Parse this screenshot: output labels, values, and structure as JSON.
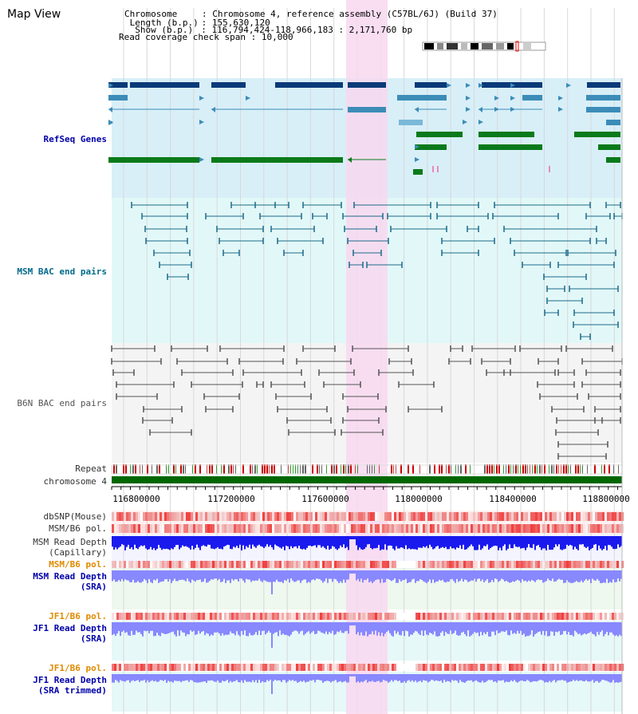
{
  "title": "Map View",
  "info": {
    "chromosome_key": "Chromosome",
    "chromosome_val": "Chromosome 4, reference assembly (C57BL/6J) (Build 37)",
    "length_key": "Length (b.p.)",
    "length_val": "155,630,120",
    "show_key": "Show (b.p.)",
    "show_val": "116,794,424-118,966,183 : 2,171,760 bp",
    "span_key": "Read coverage check span",
    "span_val": "10,000"
  },
  "tracks": {
    "refseq": "RefSeq Genes",
    "msm_bac": "MSM BAC end pairs",
    "b6n_bac": "B6N BAC end pairs",
    "repeat": "Repeat",
    "chromosome": "chromosome 4",
    "dbsnp": "dbSNP(Mouse)",
    "msm_b6_pol": "MSM/B6 pol.",
    "msm_depth_cap_1": "MSM Read Depth",
    "msm_depth_cap_2": "(Capillary)",
    "msm_b6_pol_2": "MSM/B6 pol.",
    "msm_depth_sra_1": "MSM Read Depth",
    "msm_depth_sra_2": "(SRA)",
    "jf1_b6_pol": "JF1/B6 pol.",
    "jf1_depth_sra_1": "JF1 Read Depth",
    "jf1_depth_sra_2": "(SRA)",
    "jf1_b6_pol_2": "JF1/B6 pol.",
    "jf1_depth_trim_1": "JF1 Read Depth",
    "jf1_depth_trim_2": "(SRA trimmed)"
  },
  "axis_ticks": [
    "116800000",
    "117200000",
    "117600000",
    "118000000",
    "118400000",
    "118800000"
  ],
  "colors": {
    "refseq_bg": "#d8eff8",
    "msm_bg": "#e2f8f8",
    "b6n_bg": "#f4f4f4",
    "highlight": "#f8d8f0",
    "chromosome_bar": "#006600",
    "depth_blue": "#1a1aee",
    "depth_light": "#8888ff",
    "label_blue": "#0000aa",
    "label_teal": "#006a8a",
    "label_gray": "#555555",
    "label_orange": "#e08a00"
  }
}
